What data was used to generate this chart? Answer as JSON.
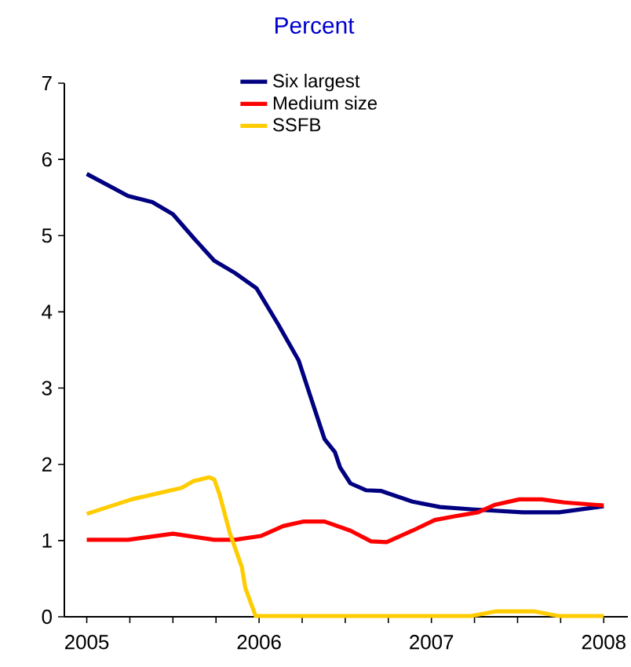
{
  "chart_data": {
    "type": "line",
    "title": "Percent",
    "legend": "top",
    "grid": false,
    "marker": "none",
    "line_style": "solid",
    "xlim": [
      2004.87,
      2008.14
    ],
    "ylim": [
      0,
      7
    ],
    "yticks": [
      0,
      1,
      2,
      3,
      4,
      5,
      6,
      7
    ],
    "xticks": [
      2005,
      {
        "value": 2005.25,
        "label": null
      },
      {
        "value": 2005.5,
        "label": null
      },
      {
        "value": 2005.75,
        "label": null
      },
      2006,
      {
        "value": 2006.25,
        "label": null
      },
      {
        "value": 2006.5,
        "label": null
      },
      {
        "value": 2006.75,
        "label": null
      },
      2007,
      {
        "value": 2007.25,
        "label": null
      },
      {
        "value": 2007.5,
        "label": null
      },
      {
        "value": 2007.75,
        "label": null
      },
      2008
    ],
    "series": [
      {
        "name": "Six largest",
        "color": "#000080",
        "x": [
          2005.0,
          2005.24,
          2005.38,
          2005.5,
          2005.62,
          2005.74,
          2005.86,
          2005.985,
          2006.11,
          2006.23,
          2006.32,
          2006.38,
          2006.44,
          2006.47,
          2006.53,
          2006.62,
          2006.71,
          2006.89,
          2007.05,
          2007.23,
          2007.53,
          2007.74,
          2008.0
        ],
        "values": [
          5.81,
          5.52,
          5.44,
          5.28,
          4.97,
          4.67,
          4.51,
          4.31,
          3.84,
          3.36,
          2.74,
          2.33,
          2.16,
          1.96,
          1.75,
          1.66,
          1.65,
          1.51,
          1.44,
          1.41,
          1.37,
          1.37,
          1.45
        ]
      },
      {
        "name": "Medium size",
        "color": "#ff0000",
        "x": [
          2005.0,
          2005.24,
          2005.5,
          2005.74,
          2005.86,
          2006.01,
          2006.14,
          2006.26,
          2006.38,
          2006.53,
          2006.65,
          2006.74,
          2006.89,
          2007.02,
          2007.14,
          2007.27,
          2007.37,
          2007.51,
          2007.64,
          2007.77,
          2008.0
        ],
        "values": [
          1.01,
          1.01,
          1.09,
          1.01,
          1.01,
          1.06,
          1.19,
          1.25,
          1.25,
          1.13,
          0.99,
          0.98,
          1.13,
          1.27,
          1.32,
          1.37,
          1.47,
          1.54,
          1.54,
          1.5,
          1.46
        ]
      },
      {
        "name": "SSFB",
        "color": "#ffcc00",
        "x": [
          2005.0,
          2005.26,
          2005.55,
          2005.62,
          2005.71,
          2005.74,
          2005.77,
          2005.83,
          2005.9,
          2005.92,
          2005.98,
          2006.23,
          2007.23,
          2007.37,
          2007.6,
          2007.74,
          2008.0
        ],
        "values": [
          1.35,
          1.54,
          1.69,
          1.78,
          1.83,
          1.8,
          1.61,
          1.1,
          0.65,
          0.38,
          0.01,
          0.01,
          0.01,
          0.07,
          0.07,
          0.01,
          0.01
        ]
      }
    ]
  }
}
